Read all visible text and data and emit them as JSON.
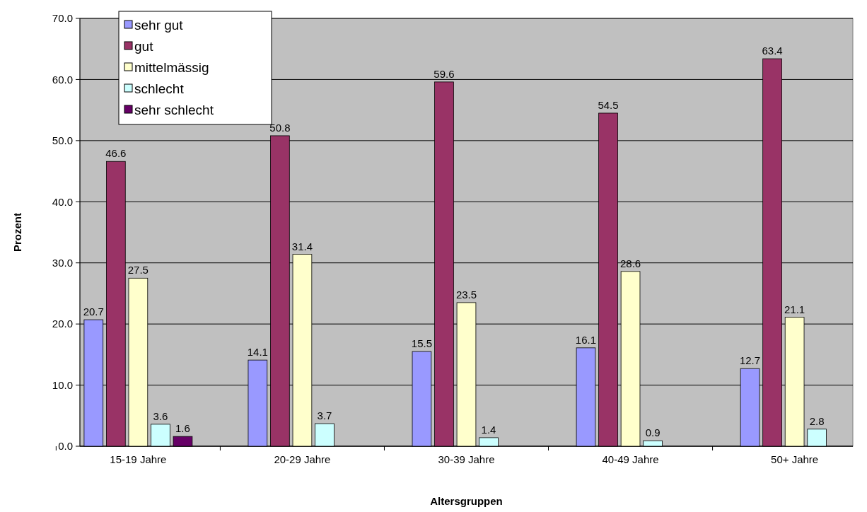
{
  "chart_data": {
    "type": "bar",
    "xlabel": "Altersgruppen",
    "ylabel": "Prozent",
    "categories": [
      "15-19 Jahre",
      "20-29 Jahre",
      "30-39 Jahre",
      "40-49 Jahre",
      "50+ Jahre"
    ],
    "series": [
      {
        "name": "sehr gut",
        "color": "#9999ff",
        "values": [
          20.7,
          14.1,
          15.5,
          16.1,
          12.7
        ]
      },
      {
        "name": "gut",
        "color": "#993366",
        "values": [
          46.6,
          50.8,
          59.6,
          54.5,
          63.4
        ]
      },
      {
        "name": "mittelmässig",
        "color": "#ffffcc",
        "values": [
          27.5,
          31.4,
          23.5,
          28.6,
          21.1
        ]
      },
      {
        "name": "schlecht",
        "color": "#ccffff",
        "values": [
          3.6,
          3.7,
          1.4,
          0.9,
          2.8
        ]
      },
      {
        "name": "sehr schlecht",
        "color": "#660066",
        "values": [
          1.6,
          null,
          null,
          null,
          null
        ]
      }
    ],
    "ylim": [
      0,
      70
    ],
    "yticks": [
      {
        "value": 0,
        "label": "0.0"
      },
      {
        "value": 10,
        "label": "10.0"
      },
      {
        "value": 20,
        "label": "20.0"
      },
      {
        "value": 30,
        "label": "30.0"
      },
      {
        "value": 40,
        "label": "40.0"
      },
      {
        "value": 50,
        "label": "50.0"
      },
      {
        "value": 60,
        "label": "60.0"
      },
      {
        "value": 70,
        "label": "70.0"
      }
    ],
    "grid": "y",
    "legend": "top left",
    "data_labels": true
  }
}
